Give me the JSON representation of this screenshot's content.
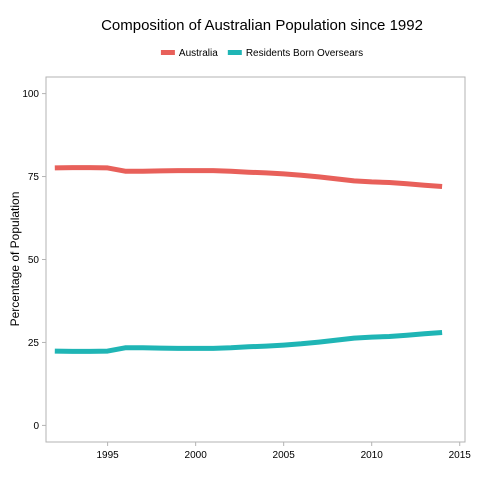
{
  "chart_data": {
    "type": "line",
    "title": "Composition of Australian Population since 1992",
    "xlabel": "",
    "ylabel": "Percentage of Population",
    "xlim": [
      1991.5,
      2015.3
    ],
    "ylim": [
      -5,
      105
    ],
    "x_ticks": [
      1995,
      2000,
      2005,
      2010,
      2015
    ],
    "y_ticks": [
      0,
      25,
      50,
      75,
      100
    ],
    "grid": false,
    "legend_position": "top",
    "series": [
      {
        "name": "Australia",
        "color": "#E8605A",
        "x": [
          1992,
          1993,
          1994,
          1995,
          1996,
          1997,
          1998,
          1999,
          2000,
          2001,
          2002,
          2003,
          2004,
          2005,
          2006,
          2007,
          2008,
          2009,
          2010,
          2011,
          2012,
          2013,
          2014
        ],
        "y": [
          77.6,
          77.7,
          77.7,
          77.6,
          76.6,
          76.6,
          76.7,
          76.8,
          76.8,
          76.8,
          76.6,
          76.3,
          76.1,
          75.8,
          75.4,
          74.9,
          74.3,
          73.7,
          73.4,
          73.2,
          72.8,
          72.4,
          72.0
        ]
      },
      {
        "name": "Residents Born Oversears",
        "color": "#1FB5B5",
        "x": [
          1992,
          1993,
          1994,
          1995,
          1996,
          1997,
          1998,
          1999,
          2000,
          2001,
          2002,
          2003,
          2004,
          2005,
          2006,
          2007,
          2008,
          2009,
          2010,
          2011,
          2012,
          2013,
          2014
        ],
        "y": [
          22.4,
          22.3,
          22.3,
          22.4,
          23.4,
          23.4,
          23.3,
          23.2,
          23.2,
          23.2,
          23.4,
          23.7,
          23.9,
          24.2,
          24.6,
          25.1,
          25.7,
          26.3,
          26.6,
          26.8,
          27.2,
          27.6,
          28.0
        ]
      }
    ]
  }
}
